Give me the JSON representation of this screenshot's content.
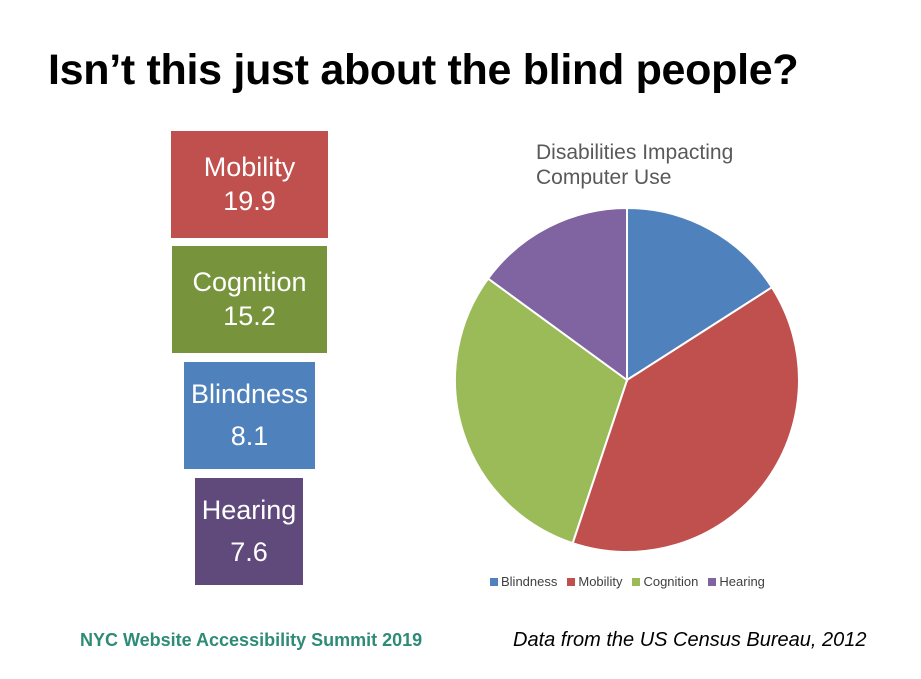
{
  "slide": {
    "title": "Isn’t this just about the blind people?",
    "footer_left": "NYC Website Accessibility Summit 2019",
    "footer_right": "Data from the US Census Bureau, 2012"
  },
  "boxes": [
    {
      "label": "Mobility",
      "value": "19.9",
      "color": "#c0504d"
    },
    {
      "label": "Cognition",
      "value": "15.2",
      "color": "#77933c"
    },
    {
      "label": "Blindness",
      "value": "8.1",
      "color": "#4f81bd"
    },
    {
      "label": "Hearing",
      "value": "7.6",
      "color": "#604a7b"
    }
  ],
  "chart_data": {
    "type": "pie",
    "title": "Disabilities Impacting Computer Use",
    "categories": [
      "Blindness",
      "Mobility",
      "Cognition",
      "Hearing"
    ],
    "values": [
      8.1,
      19.9,
      15.2,
      7.6
    ],
    "colors": [
      "#4f81bd",
      "#c0504d",
      "#9bbb59",
      "#8064a2"
    ],
    "legend_position": "bottom"
  }
}
